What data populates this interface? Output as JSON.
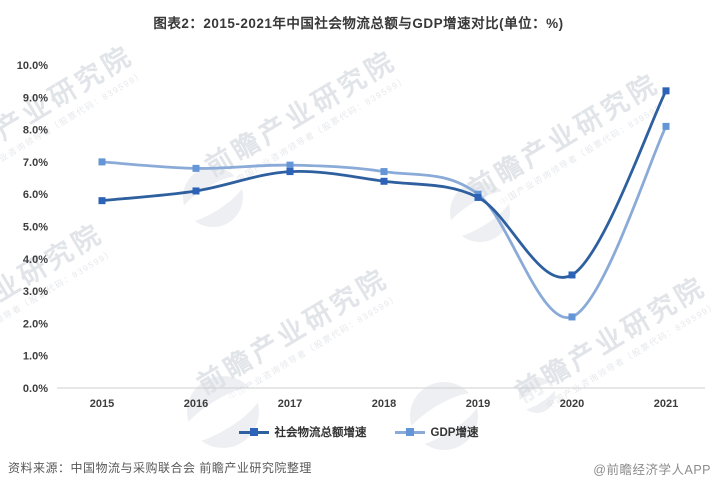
{
  "page": {
    "title": "图表2：2015-2021年中国社会物流总额与GDP增速对比(单位：%)",
    "source_left": "资料来源：中国物流与采购联合会 前瞻产业研究院整理",
    "source_right": "@前瞻经济学人APP",
    "watermark": {
      "text": "前瞻产业研究院",
      "subtext": "中国产业咨询领导者（股票代码：839599）"
    }
  },
  "chart_data": {
    "type": "line",
    "title": "图表2：2015-2021年中国社会物流总额与GDP增速对比(单位：%)",
    "categories": [
      "2015",
      "2016",
      "2017",
      "2018",
      "2019",
      "2020",
      "2021"
    ],
    "series": [
      {
        "name": "社会物流总额增速",
        "values": [
          5.8,
          6.1,
          6.7,
          6.4,
          5.9,
          3.5,
          9.2
        ],
        "line_color": "#2e5f9e",
        "marker_color": "#2c62b8"
      },
      {
        "name": "GDP增速",
        "values": [
          7.0,
          6.8,
          6.9,
          6.7,
          6.0,
          2.2,
          8.1
        ],
        "line_color": "#8aabd8",
        "marker_color": "#6495d6"
      }
    ],
    "ylim": [
      0,
      10
    ],
    "ytick_labels": [
      "0.0%",
      "1.0%",
      "2.0%",
      "3.0%",
      "4.0%",
      "5.0%",
      "6.0%",
      "7.0%",
      "8.0%",
      "9.0%",
      "10.0%"
    ],
    "xlabel": "",
    "ylabel": "",
    "grid": false,
    "legend_position": "bottom",
    "axis_color": "#cfcfcf",
    "tick_label_color": "#3d3d3d"
  }
}
